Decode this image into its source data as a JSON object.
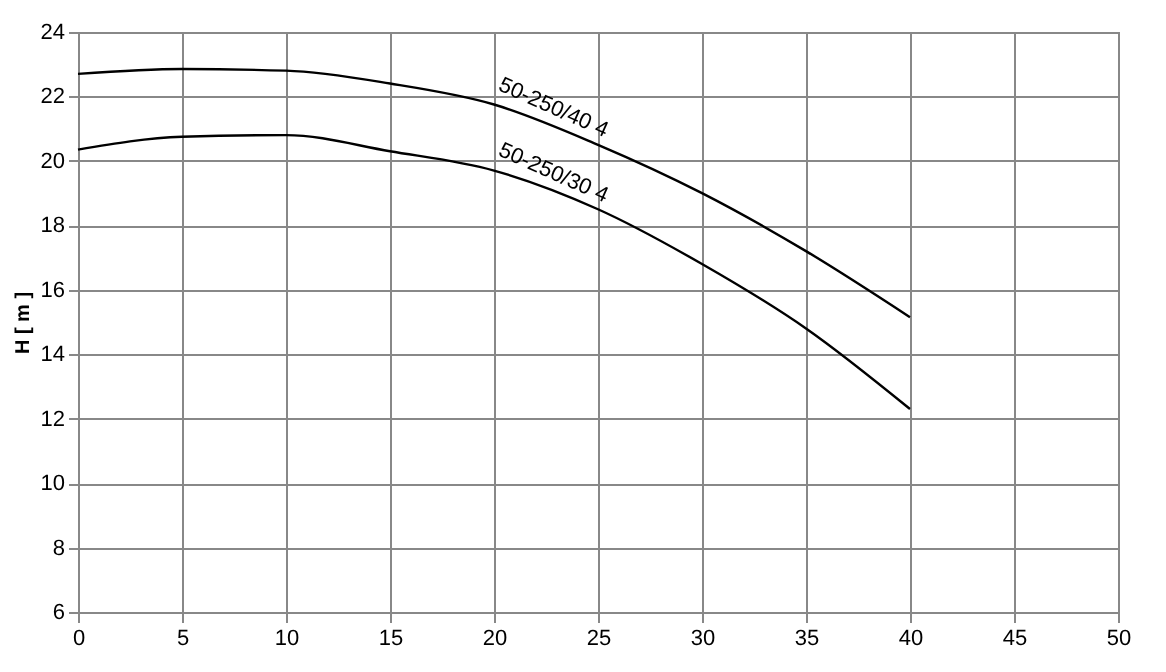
{
  "chart_data": {
    "type": "line",
    "ylabel": "H [ m ]",
    "x": [
      0,
      5,
      10,
      15,
      20,
      25,
      30,
      35,
      40
    ],
    "series": [
      {
        "name": "50-250/40  4",
        "color": "#000000",
        "values": [
          22.7,
          22.85,
          22.8,
          22.4,
          21.75,
          20.5,
          19.0,
          17.2,
          15.15
        ]
      },
      {
        "name": "50-250/30  4",
        "color": "#000000",
        "values": [
          20.35,
          20.75,
          20.8,
          20.3,
          19.7,
          18.5,
          16.8,
          14.8,
          12.3
        ]
      }
    ],
    "xlim": [
      0,
      50
    ],
    "xticks": [
      0,
      5,
      10,
      15,
      20,
      25,
      30,
      35,
      40,
      45,
      50
    ],
    "ylim": [
      6,
      24
    ],
    "yticks": [
      6,
      8,
      10,
      12,
      14,
      16,
      18,
      20,
      22,
      24
    ],
    "grid": true,
    "legend": false,
    "marker": "none",
    "line_style": "solid"
  }
}
